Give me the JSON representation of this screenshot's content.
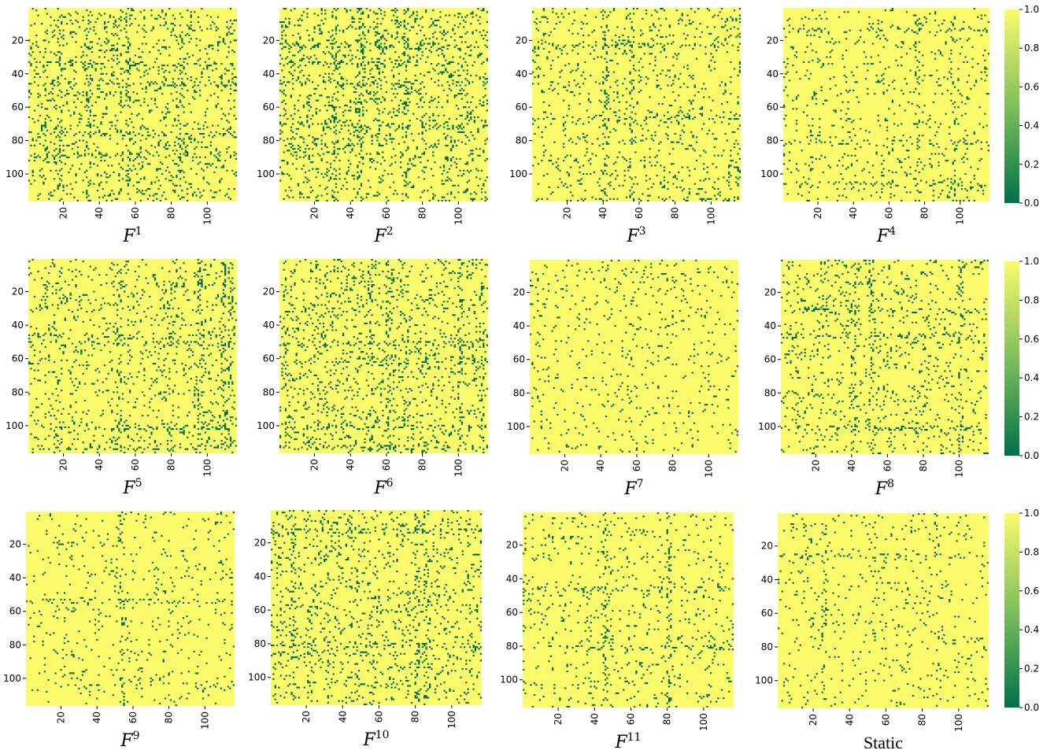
{
  "colors": {
    "high": "#fbfb6b",
    "mid": "#7fbf5a",
    "low": "#00704a",
    "static_title": "#1f4e99"
  },
  "colorbar": {
    "ticks": [
      "0.0",
      "0.2",
      "0.4",
      "0.6",
      "0.8",
      "1.0"
    ]
  },
  "chart_data": [
    {
      "type": "heatmap",
      "title": "F",
      "sup": "1",
      "size": 116,
      "x_ticks": [
        "20",
        "40",
        "60",
        "80",
        "100"
      ],
      "y_ticks": [
        "20",
        "40",
        "60",
        "80",
        "100"
      ],
      "zlim": [
        0,
        1
      ],
      "density": 0.1,
      "band_rows": [
        33,
        45,
        75,
        88
      ],
      "band_cols": [
        17,
        33,
        55,
        85
      ],
      "seed": 101,
      "values_note": "binary adjacency matrix: 1 (yellow) / 0 (green)"
    },
    {
      "type": "heatmap",
      "title": "F",
      "sup": "2",
      "size": 116,
      "x_ticks": [
        "20",
        "40",
        "60",
        "80",
        "100"
      ],
      "y_ticks": [
        "20",
        "40",
        "60",
        "80",
        "100"
      ],
      "zlim": [
        0,
        1
      ],
      "density": 0.12,
      "band_rows": [
        22,
        33,
        45,
        70
      ],
      "band_cols": [
        30,
        45,
        55,
        70
      ],
      "seed": 202,
      "values_note": "binary adjacency matrix: 1 (yellow) / 0 (green)"
    },
    {
      "type": "heatmap",
      "title": "F",
      "sup": "3",
      "size": 116,
      "x_ticks": [
        "20",
        "40",
        "60",
        "80",
        "100"
      ],
      "y_ticks": [
        "20",
        "40",
        "60",
        "80",
        "100"
      ],
      "zlim": [
        0,
        1
      ],
      "density": 0.07,
      "band_rows": [
        22,
        65,
        115
      ],
      "band_cols": [
        40,
        55,
        115
      ],
      "seed": 303,
      "values_note": "binary adjacency matrix: 1 (yellow) / 0 (green)"
    },
    {
      "type": "heatmap",
      "title": "F",
      "sup": "4",
      "size": 116,
      "x_ticks": [
        "20",
        "40",
        "60",
        "80",
        "100"
      ],
      "y_ticks": [
        "20",
        "40",
        "60",
        "80",
        "100"
      ],
      "zlim": [
        0,
        1
      ],
      "density": 0.05,
      "band_rows": [
        13,
        80,
        105
      ],
      "band_cols": [
        75,
        95
      ],
      "seed": 404,
      "values_note": "binary adjacency matrix: 1 (yellow) / 0 (green)"
    },
    {
      "type": "heatmap",
      "title": "F",
      "sup": "5",
      "size": 116,
      "x_ticks": [
        "20",
        "40",
        "60",
        "80",
        "100"
      ],
      "y_ticks": [
        "20",
        "40",
        "60",
        "80",
        "100"
      ],
      "zlim": [
        0,
        1
      ],
      "density": 0.08,
      "band_rows": [
        45,
        50,
        100,
        112
      ],
      "band_cols": [
        50,
        95,
        108,
        112
      ],
      "seed": 505,
      "values_note": "binary adjacency matrix: 1 (yellow) / 0 (green)"
    },
    {
      "type": "heatmap",
      "title": "F",
      "sup": "6",
      "size": 116,
      "x_ticks": [
        "20",
        "40",
        "60",
        "80",
        "100"
      ],
      "y_ticks": [
        "20",
        "40",
        "60",
        "80",
        "100"
      ],
      "zlim": [
        0,
        1
      ],
      "density": 0.1,
      "band_rows": [
        50,
        60,
        100,
        112
      ],
      "band_cols": [
        50,
        60,
        100,
        112
      ],
      "seed": 606,
      "values_note": "binary adjacency matrix: 1 (yellow) / 0 (green)"
    },
    {
      "type": "heatmap",
      "title": "F",
      "sup": "7",
      "size": 116,
      "x_ticks": [
        "20",
        "40",
        "60",
        "80",
        "100"
      ],
      "y_ticks": [
        "20",
        "40",
        "60",
        "80",
        "100"
      ],
      "zlim": [
        0,
        1
      ],
      "density": 0.045,
      "band_rows": [],
      "band_cols": [],
      "seed": 707,
      "values_note": "binary adjacency matrix: 1 (yellow) / 0 (green)"
    },
    {
      "type": "heatmap",
      "title": "F",
      "sup": "8",
      "size": 116,
      "x_ticks": [
        "20",
        "40",
        "60",
        "80",
        "100"
      ],
      "y_ticks": [
        "20",
        "40",
        "60",
        "80",
        "100"
      ],
      "zlim": [
        0,
        1
      ],
      "density": 0.07,
      "band_rows": [
        30,
        45,
        100
      ],
      "band_cols": [
        40,
        50,
        100
      ],
      "seed": 808,
      "values_note": "binary adjacency matrix: 1 (yellow) / 0 (green)"
    },
    {
      "type": "heatmap",
      "title": "F",
      "sup": "9",
      "size": 116,
      "x_ticks": [
        "20",
        "40",
        "60",
        "80",
        "100"
      ],
      "y_ticks": [
        "20",
        "40",
        "60",
        "80",
        "100"
      ],
      "zlim": [
        0,
        1
      ],
      "density": 0.04,
      "band_rows": [
        53
      ],
      "band_cols": [
        53
      ],
      "seed": 909,
      "values_note": "binary adjacency matrix: 1 (yellow) / 0 (green)"
    },
    {
      "type": "heatmap",
      "title": "F",
      "sup": "10",
      "size": 116,
      "x_ticks": [
        "20",
        "40",
        "60",
        "80",
        "100"
      ],
      "y_ticks": [
        "20",
        "40",
        "60",
        "80",
        "100"
      ],
      "zlim": [
        0,
        1
      ],
      "density": 0.09,
      "band_rows": [
        12,
        80,
        85
      ],
      "band_cols": [
        12,
        80,
        85
      ],
      "seed": 1010,
      "values_note": "binary adjacency matrix: 1 (yellow) / 0 (green)"
    },
    {
      "type": "heatmap",
      "title": "F",
      "sup": "11",
      "size": 116,
      "x_ticks": [
        "20",
        "40",
        "60",
        "80",
        "100"
      ],
      "y_ticks": [
        "20",
        "40",
        "60",
        "80",
        "100"
      ],
      "zlim": [
        0,
        1
      ],
      "density": 0.05,
      "band_rows": [
        45,
        80
      ],
      "band_cols": [
        45,
        80
      ],
      "seed": 1111,
      "values_note": "binary adjacency matrix: 1 (yellow) / 0 (green)"
    },
    {
      "type": "heatmap",
      "title": "Static",
      "sup": "",
      "size": 116,
      "x_ticks": [
        "20",
        "40",
        "60",
        "80",
        "100"
      ],
      "y_ticks": [
        "20",
        "40",
        "60",
        "80",
        "100"
      ],
      "zlim": [
        0,
        1
      ],
      "density": 0.04,
      "band_rows": [
        25
      ],
      "band_cols": [
        25
      ],
      "seed": 1212,
      "values_note": "binary adjacency matrix: 1 (yellow) / 0 (green)"
    }
  ]
}
